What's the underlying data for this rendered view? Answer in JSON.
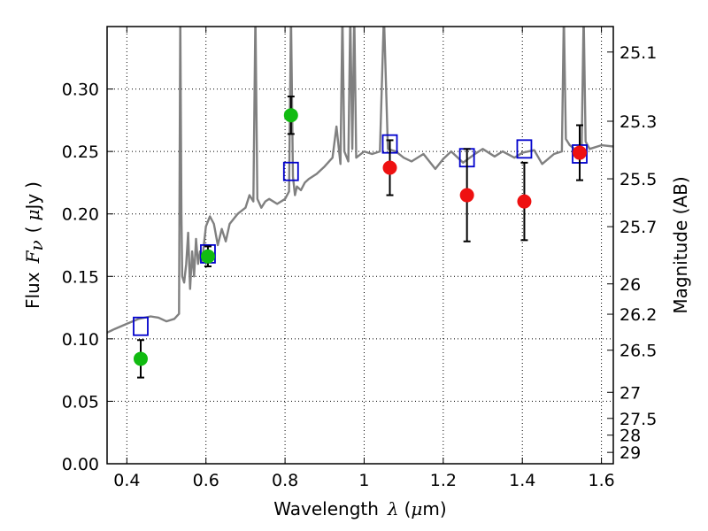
{
  "chart_data": {
    "type": "scatter",
    "xlim": [
      0.35,
      1.63
    ],
    "ylim": [
      0.0,
      0.35
    ],
    "grid": true,
    "x_ticks": [
      0.4,
      0.6,
      0.8,
      1.0,
      1.2,
      1.4,
      1.6
    ],
    "x_tick_labels": [
      "0.4",
      "0.6",
      "0.8",
      "1",
      "1.2",
      "1.4",
      "1.6"
    ],
    "y_ticks": [
      0.0,
      0.05,
      0.1,
      0.15,
      0.2,
      0.25,
      0.3
    ],
    "y_tick_labels": [
      "0.00",
      "0.05",
      "0.10",
      "0.15",
      "0.20",
      "0.25",
      "0.30"
    ],
    "xlabel": {
      "text": "Wavelength",
      "symbol": "λ",
      "unit_open": "(",
      "unit_mu": "μ",
      "unit_rest": "m)"
    },
    "ylabel": {
      "text": "Flux",
      "symbol": "F",
      "subscript": "ν",
      "unit_open": "(",
      "unit_mu": "μ",
      "unit_rest": "Jy",
      "unit_close": ")"
    },
    "right_axis": {
      "label": "Magnitude (AB)",
      "tick_labels": [
        "25.1",
        "25.3",
        "25.5",
        "25.7",
        "26",
        "26.2",
        "26.5",
        "27",
        "27.5",
        "28",
        "29"
      ],
      "tick_flux": [
        0.3296,
        0.2742,
        0.2281,
        0.1898,
        0.144,
        0.1197,
        0.0909,
        0.0572,
        0.0363,
        0.0229,
        0.0091
      ]
    },
    "series": [
      {
        "marker": "line",
        "color": "#808080",
        "x": [
          0.35,
          0.37,
          0.4,
          0.43,
          0.46,
          0.48,
          0.5,
          0.52,
          0.532,
          0.535,
          0.538,
          0.54,
          0.545,
          0.55,
          0.555,
          0.56,
          0.565,
          0.57,
          0.575,
          0.58,
          0.585,
          0.59,
          0.6,
          0.61,
          0.62,
          0.63,
          0.64,
          0.65,
          0.66,
          0.68,
          0.7,
          0.71,
          0.72,
          0.725,
          0.73,
          0.74,
          0.75,
          0.76,
          0.78,
          0.8,
          0.81,
          0.815,
          0.82,
          0.825,
          0.83,
          0.84,
          0.85,
          0.86,
          0.88,
          0.9,
          0.92,
          0.93,
          0.94,
          0.945,
          0.95,
          0.96,
          0.965,
          0.97,
          0.975,
          0.98,
          1.0,
          1.02,
          1.04,
          1.05,
          1.06,
          1.08,
          1.1,
          1.12,
          1.15,
          1.18,
          1.2,
          1.22,
          1.25,
          1.28,
          1.3,
          1.33,
          1.35,
          1.38,
          1.4,
          1.43,
          1.45,
          1.48,
          1.5,
          1.505,
          1.51,
          1.52,
          1.54,
          1.55,
          1.555,
          1.56,
          1.57,
          1.6,
          1.63
        ],
        "y": [
          0.105,
          0.108,
          0.112,
          0.116,
          0.118,
          0.117,
          0.114,
          0.116,
          0.12,
          0.36,
          0.2,
          0.15,
          0.145,
          0.16,
          0.185,
          0.14,
          0.17,
          0.15,
          0.18,
          0.16,
          0.17,
          0.162,
          0.19,
          0.198,
          0.192,
          0.175,
          0.188,
          0.178,
          0.192,
          0.2,
          0.205,
          0.215,
          0.21,
          0.36,
          0.212,
          0.205,
          0.21,
          0.212,
          0.208,
          0.212,
          0.218,
          0.36,
          0.23,
          0.215,
          0.222,
          0.219,
          0.225,
          0.228,
          0.232,
          0.238,
          0.245,
          0.27,
          0.24,
          0.36,
          0.25,
          0.242,
          0.36,
          0.252,
          0.36,
          0.245,
          0.25,
          0.248,
          0.25,
          0.36,
          0.252,
          0.25,
          0.245,
          0.242,
          0.248,
          0.236,
          0.244,
          0.25,
          0.241,
          0.248,
          0.252,
          0.246,
          0.25,
          0.245,
          0.249,
          0.251,
          0.24,
          0.248,
          0.25,
          0.36,
          0.26,
          0.255,
          0.25,
          0.256,
          0.36,
          0.258,
          0.252,
          0.255,
          0.254
        ]
      },
      {
        "marker": "open-square",
        "color": "#0000cc",
        "x": [
          0.435,
          0.605,
          0.815,
          1.065,
          1.26,
          1.405,
          1.545
        ],
        "y": [
          0.11,
          0.168,
          0.234,
          0.256,
          0.245,
          0.252,
          0.248
        ]
      },
      {
        "marker": "filled-circle",
        "color": "#11bb11",
        "x": [
          0.435,
          0.605,
          0.815
        ],
        "y": [
          0.084,
          0.166,
          0.279
        ],
        "yerr": [
          0.015,
          0.008,
          0.015
        ]
      },
      {
        "marker": "filled-circle",
        "color": "#ee1111",
        "x": [
          1.065,
          1.26,
          1.405,
          1.545
        ],
        "y": [
          0.237,
          0.215,
          0.21,
          0.249
        ],
        "yerr": [
          0.022,
          0.037,
          0.031,
          0.022
        ]
      }
    ]
  }
}
